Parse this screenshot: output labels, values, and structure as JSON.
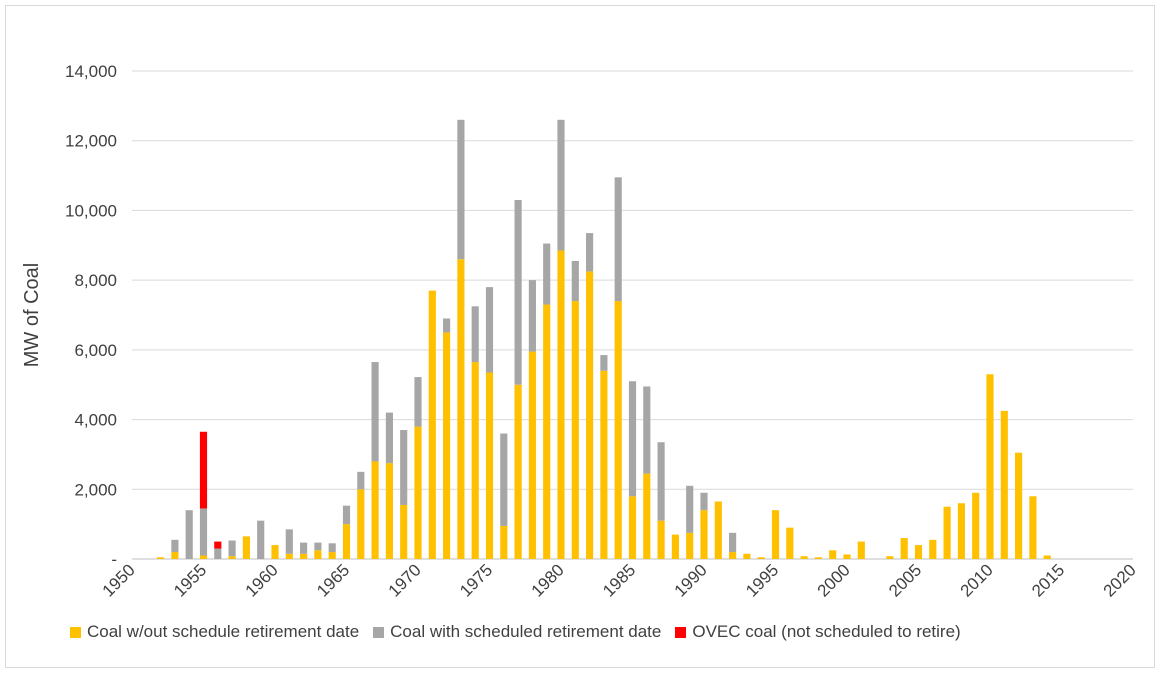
{
  "chart_data": {
    "type": "bar",
    "stacked": true,
    "title": "",
    "xlabel": "",
    "ylabel": "MW of Coal",
    "xlim": [
      1950,
      2020
    ],
    "ylim": [
      0,
      14000
    ],
    "x_ticks": [
      "1950",
      "1955",
      "1960",
      "1965",
      "1970",
      "1975",
      "1980",
      "1985",
      "1990",
      "1995",
      "2000",
      "2005",
      "2010",
      "2015",
      "2020"
    ],
    "y_ticks": [
      "-",
      "2,000",
      "4,000",
      "6,000",
      "8,000",
      "10,000",
      "12,000",
      "14,000"
    ],
    "grid": true,
    "legend_position": "bottom",
    "years": [
      1952,
      1953,
      1954,
      1955,
      1956,
      1957,
      1958,
      1959,
      1960,
      1961,
      1962,
      1963,
      1964,
      1965,
      1966,
      1967,
      1968,
      1969,
      1970,
      1971,
      1972,
      1973,
      1974,
      1975,
      1976,
      1977,
      1978,
      1979,
      1980,
      1981,
      1982,
      1983,
      1984,
      1985,
      1986,
      1987,
      1988,
      1989,
      1990,
      1991,
      1992,
      1993,
      1994,
      1995,
      1996,
      1997,
      1998,
      1999,
      2000,
      2001,
      2002,
      2003,
      2004,
      2005,
      2006,
      2007,
      2008,
      2009,
      2010,
      2011,
      2012,
      2013,
      2014
    ],
    "series": [
      {
        "name": "Coal w/out schedule retirement date",
        "color": "#ffc000",
        "values": [
          50,
          200,
          0,
          100,
          0,
          80,
          650,
          0,
          400,
          150,
          150,
          250,
          200,
          1000,
          2000,
          2800,
          2750,
          1550,
          3800,
          7700,
          6500,
          8600,
          5650,
          5350,
          950,
          5000,
          5950,
          7300,
          8850,
          7400,
          8250,
          5400,
          7400,
          1800,
          2450,
          1100,
          700,
          750,
          1400,
          1650,
          200,
          150,
          50,
          1400,
          900,
          80,
          50,
          250,
          130,
          500,
          0,
          80,
          600,
          400,
          550,
          1500,
          1600,
          1900,
          5300,
          4250,
          3050,
          1800,
          100
        ]
      },
      {
        "name": "Coal with scheduled retirement date",
        "color": "#a6a6a6",
        "values": [
          0,
          350,
          1400,
          1350,
          300,
          450,
          0,
          1100,
          0,
          700,
          320,
          220,
          250,
          530,
          500,
          2850,
          1450,
          2150,
          1420,
          0,
          400,
          4000,
          1600,
          2450,
          2650,
          5300,
          2050,
          1750,
          3750,
          1150,
          1100,
          450,
          3550,
          3300,
          2500,
          2250,
          0,
          1350,
          500,
          0,
          550,
          0,
          0,
          0,
          0,
          0,
          0,
          0,
          0,
          0,
          0,
          0,
          0,
          0,
          0,
          0,
          0,
          0,
          0,
          0,
          0,
          0,
          0
        ]
      },
      {
        "name": "OVEC coal (not scheduled to retire)",
        "color": "#ff0000",
        "values": [
          0,
          0,
          0,
          2200,
          200,
          0,
          0,
          0,
          0,
          0,
          0,
          0,
          0,
          0,
          0,
          0,
          0,
          0,
          0,
          0,
          0,
          0,
          0,
          0,
          0,
          0,
          0,
          0,
          0,
          0,
          0,
          0,
          0,
          0,
          0,
          0,
          0,
          0,
          0,
          0,
          0,
          0,
          0,
          0,
          0,
          0,
          0,
          0,
          0,
          0,
          0,
          0,
          0,
          0,
          0,
          0,
          0,
          0,
          0,
          0,
          0,
          0,
          0
        ]
      }
    ]
  }
}
